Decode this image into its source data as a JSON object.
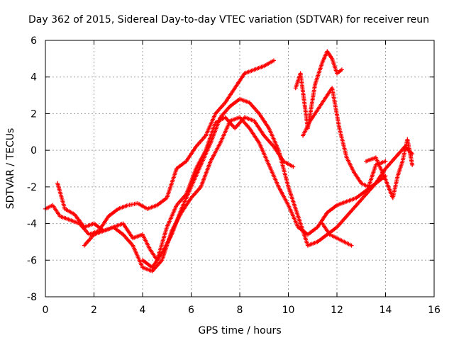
{
  "chart_data": {
    "type": "scatter",
    "title": "Day 362 of 2015, Sidereal Day-to-day VTEC variation (SDTVAR) for receiver reun",
    "xlabel": "GPS time / hours",
    "ylabel": "SDTVAR / TECUs",
    "xlim": [
      0,
      16
    ],
    "ylim": [
      -8,
      6
    ],
    "xticks": [
      0,
      2,
      4,
      6,
      8,
      10,
      12,
      14,
      16
    ],
    "yticks": [
      -8,
      -6,
      -4,
      -2,
      0,
      2,
      4,
      6
    ],
    "grid": true,
    "legend": "none",
    "marker": "plus",
    "series": [
      {
        "color": "#ff0000",
        "x": [
          0.0,
          0.3,
          0.6,
          1.0,
          1.4,
          1.8,
          2.2,
          2.6,
          3.0,
          3.4,
          3.8,
          4.2,
          4.6,
          5.0,
          5.4,
          5.8,
          6.2,
          6.6,
          7.0,
          7.4,
          7.8,
          8.2,
          8.6,
          9.0,
          9.4
        ],
        "y": [
          -3.2,
          -3.0,
          -3.6,
          -3.8,
          -4.0,
          -4.6,
          -4.4,
          -3.6,
          -3.2,
          -3.0,
          -2.9,
          -3.2,
          -3.0,
          -2.6,
          -1.0,
          -0.6,
          0.2,
          0.8,
          2.0,
          2.6,
          3.4,
          4.2,
          4.4,
          4.6,
          4.9
        ]
      },
      {
        "color": "#ff0000",
        "x": [
          0.5,
          0.8,
          1.2,
          1.6,
          2.0,
          2.4,
          2.8,
          3.2,
          3.6,
          4.0,
          4.3,
          4.6,
          5.0,
          5.4,
          5.8,
          6.2,
          6.6,
          7.0,
          7.4,
          7.8,
          8.2,
          8.6,
          9.0,
          9.4,
          9.8,
          10.2
        ],
        "y": [
          -1.8,
          -3.2,
          -3.5,
          -4.2,
          -4.0,
          -4.4,
          -4.2,
          -4.0,
          -4.8,
          -4.6,
          -5.4,
          -6.0,
          -4.2,
          -3.0,
          -2.4,
          -1.0,
          0.0,
          1.5,
          1.8,
          1.2,
          1.8,
          1.6,
          0.8,
          0.2,
          -0.6,
          -0.9
        ]
      },
      {
        "color": "#ff0000",
        "x": [
          1.6,
          2.0,
          2.4,
          2.8,
          3.2,
          3.6,
          4.0,
          4.4,
          4.8,
          5.2,
          5.6,
          6.0,
          6.4,
          6.8,
          7.2,
          7.6,
          8.0,
          8.4,
          8.8,
          9.2,
          9.6,
          10.0,
          10.4,
          10.8,
          11.2,
          11.6,
          12.0,
          12.4,
          12.8,
          13.2,
          13.6,
          14.0
        ],
        "y": [
          -5.2,
          -4.6,
          -4.4,
          -4.2,
          -4.6,
          -5.2,
          -6.4,
          -6.6,
          -6.0,
          -4.4,
          -3.4,
          -2.6,
          -2.0,
          -0.6,
          0.4,
          1.6,
          1.8,
          1.2,
          0.4,
          -0.8,
          -2.0,
          -3.0,
          -4.2,
          -4.6,
          -4.2,
          -3.4,
          -3.0,
          -2.8,
          -2.6,
          -2.2,
          -1.8,
          -1.4
        ]
      },
      {
        "color": "#ff0000",
        "x": [
          4.0,
          4.4,
          4.8,
          5.2,
          5.6,
          6.0,
          6.4,
          6.8,
          7.2,
          7.6,
          8.0,
          8.4,
          8.8,
          9.2,
          9.6,
          10.0,
          10.4,
          10.8,
          11.2,
          11.6,
          12.0,
          12.4,
          12.8,
          13.2,
          13.6,
          14.0,
          14.4,
          14.8,
          15.1
        ],
        "y": [
          -6.0,
          -6.4,
          -5.6,
          -4.6,
          -3.2,
          -2.0,
          -0.8,
          0.4,
          1.8,
          2.4,
          2.8,
          2.6,
          2.0,
          1.2,
          0.0,
          -2.0,
          -3.6,
          -5.2,
          -5.0,
          -4.6,
          -4.2,
          -3.6,
          -3.0,
          -2.4,
          -1.8,
          -1.0,
          -0.4,
          0.2,
          -0.2
        ]
      },
      {
        "color": "#ff0000",
        "x": [
          10.3,
          10.5,
          10.8,
          11.1,
          11.4,
          11.6,
          11.8,
          12.0,
          12.2
        ],
        "y": [
          3.4,
          4.2,
          1.2,
          3.6,
          4.8,
          5.4,
          5.0,
          4.2,
          4.4
        ]
      },
      {
        "color": "#ff0000",
        "x": [
          10.6,
          10.9,
          11.2,
          11.5,
          11.8,
          12.1,
          12.4,
          12.7,
          13.0,
          13.3,
          13.6,
          14.0
        ],
        "y": [
          0.8,
          1.6,
          2.2,
          2.8,
          3.4,
          1.2,
          -0.4,
          -1.2,
          -1.8,
          -2.0,
          -0.8,
          -0.6
        ]
      },
      {
        "color": "#ff0000",
        "x": [
          11.4,
          11.7,
          12.0,
          12.3,
          12.6
        ],
        "y": [
          -4.0,
          -4.6,
          -4.8,
          -5.0,
          -5.2
        ]
      },
      {
        "color": "#ff0000",
        "x": [
          13.2,
          13.6,
          14.0,
          14.3,
          14.5,
          14.7,
          14.9,
          15.1
        ],
        "y": [
          -0.6,
          -0.4,
          -1.6,
          -2.6,
          -1.4,
          -0.6,
          0.6,
          -0.8
        ]
      }
    ]
  }
}
